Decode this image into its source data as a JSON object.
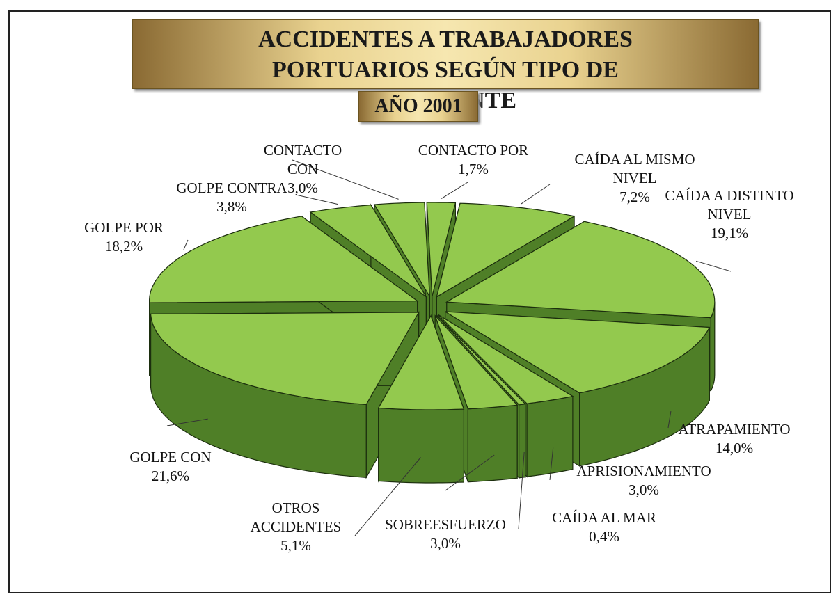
{
  "chart_data": {
    "type": "pie3d",
    "title": "ACCIDENTES A TRABAJADORES PORTUARIOS SEGÚN TIPO DE ACCIDENTE",
    "subtitle": "AÑO 2001",
    "categories": [
      "CAÍDA AL MISMO NIVEL",
      "CAÍDA A DISTINTO NIVEL",
      "ATRAPAMIENTO",
      "APRISIONAMIENTO",
      "CAÍDA AL MAR",
      "SOBREESFUERZO",
      "OTROS ACCIDENTES",
      "GOLPE CON",
      "GOLPE POR",
      "GOLPE CONTRA",
      "CONTACTO CON",
      "CONTACTO POR"
    ],
    "values": [
      7.2,
      19.1,
      14.0,
      3.0,
      0.4,
      3.0,
      5.1,
      21.6,
      18.2,
      3.8,
      3.0,
      1.7
    ],
    "value_labels": [
      "7,2%",
      "19,1%",
      "14,0%",
      "3,0%",
      "0,4%",
      "3,0%",
      "5,1%",
      "21,6%",
      "18,2%",
      "3,8%",
      "3,0%",
      "1,7%"
    ],
    "color": "#93c94e",
    "side_color": "#4f7f27"
  }
}
